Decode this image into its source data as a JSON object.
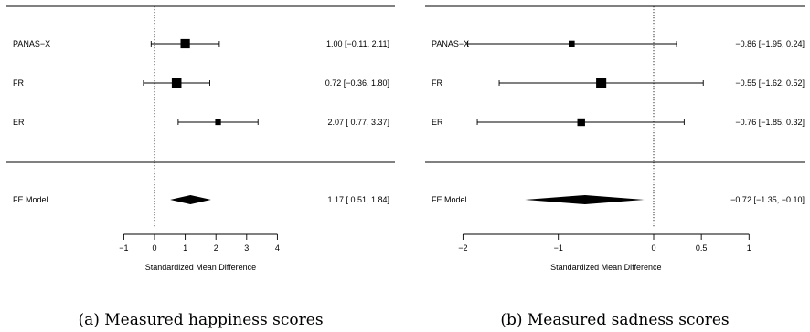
{
  "chart_data": [
    {
      "type": "forest",
      "caption": "(a) Measured happiness scores",
      "xlabel": "Standardized Mean Difference",
      "ticks": [
        "−1",
        "0",
        "1",
        "2",
        "3",
        "4"
      ],
      "tick_values": [
        -1,
        0,
        1,
        2,
        3,
        4
      ],
      "xlim": [
        -1,
        4
      ],
      "studies": [
        {
          "label": "PANAS−X",
          "estimate": 1.0,
          "ci": [
            -0.11,
            2.11
          ],
          "text": "1.00 [−0.11, 2.11]",
          "weight": 0.4
        },
        {
          "label": "FR",
          "estimate": 0.72,
          "ci": [
            -0.36,
            1.8
          ],
          "text": "0.72 [−0.36, 1.80]",
          "weight": 0.42
        },
        {
          "label": "ER",
          "estimate": 2.07,
          "ci": [
            0.77,
            3.37
          ],
          "text": "2.07 [ 0.77, 3.37]",
          "weight": 0.18
        }
      ],
      "summary": {
        "label": "FE Model",
        "estimate": 1.17,
        "ci": [
          0.51,
          1.84
        ],
        "text": "1.17 [ 0.51, 1.84]"
      }
    },
    {
      "type": "forest",
      "caption": "(b) Measured sadness scores",
      "xlabel": "Standardized Mean Difference",
      "ticks": [
        "−2",
        "−1",
        "0",
        "0.5",
        "1"
      ],
      "tick_values": [
        -2,
        -1,
        0,
        0.5,
        1
      ],
      "xlim": [
        -2,
        1
      ],
      "studies": [
        {
          "label": "PANAS−X",
          "estimate": -0.86,
          "ci": [
            -1.95,
            0.24
          ],
          "text": "−0.86 [−1.95,  0.24]",
          "weight": 0.2
        },
        {
          "label": "FR",
          "estimate": -0.55,
          "ci": [
            -1.62,
            0.52
          ],
          "text": "−0.55 [−1.62,  0.52]",
          "weight": 0.45
        },
        {
          "label": "ER",
          "estimate": -0.76,
          "ci": [
            -1.85,
            0.32
          ],
          "text": "−0.76 [−1.85,  0.32]",
          "weight": 0.3
        }
      ],
      "summary": {
        "label": "FE Model",
        "estimate": -0.72,
        "ci": [
          -1.35,
          -0.1
        ],
        "text": "−0.72 [−1.35, −0.10]"
      }
    }
  ]
}
